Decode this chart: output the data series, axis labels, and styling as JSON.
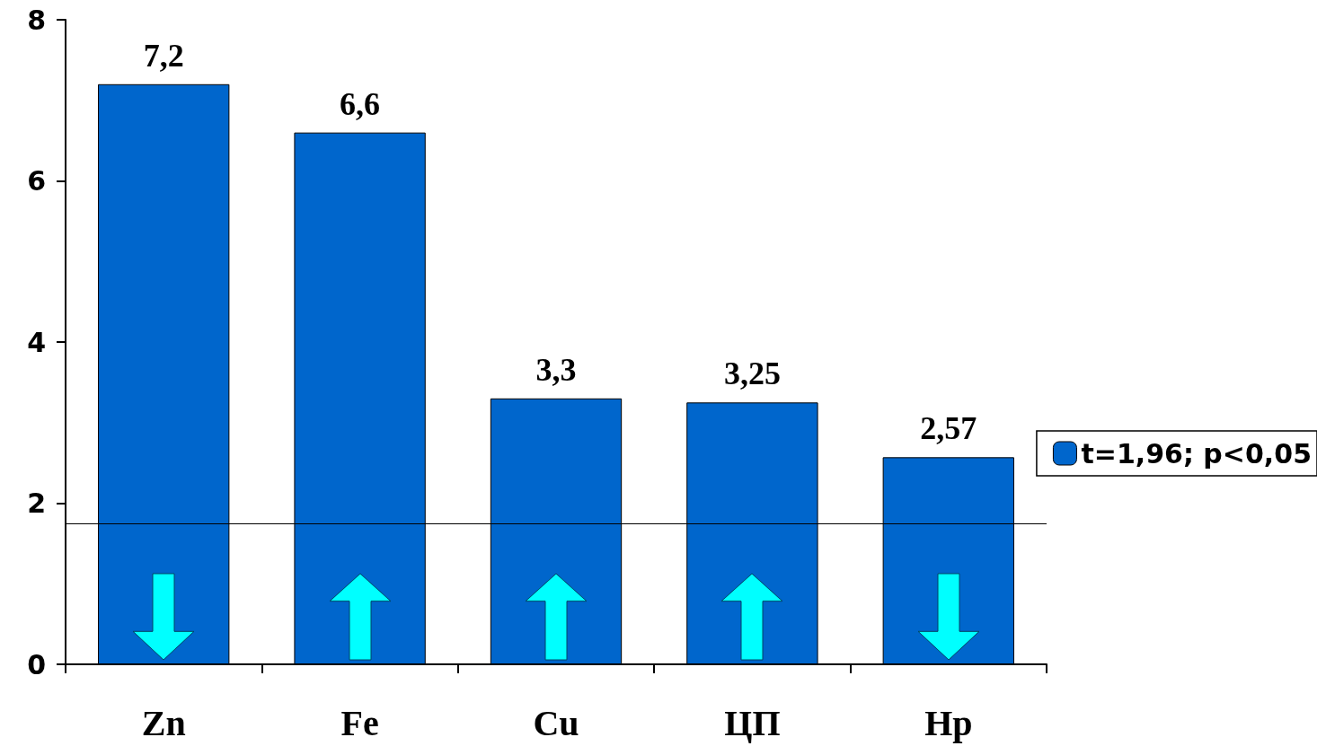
{
  "chart_data": {
    "type": "bar",
    "categories": [
      "Zn",
      "Fe",
      "Cu",
      "ЦП",
      "Hp"
    ],
    "series": [
      {
        "name": "t=1,96; p<0,05",
        "color": "#0066cc",
        "values": [
          7.2,
          6.6,
          3.3,
          3.25,
          2.57
        ],
        "value_labels": [
          "7,2",
          "6,6",
          "3,3",
          "3,25",
          "2,57"
        ]
      }
    ],
    "ylim": [
      0,
      8
    ],
    "yticks": [
      0,
      2,
      4,
      6,
      8
    ],
    "grid": false,
    "legend": "right",
    "ref_lines": [
      {
        "axis": "y",
        "value": 1.75,
        "color": "#000000"
      }
    ]
  }
}
